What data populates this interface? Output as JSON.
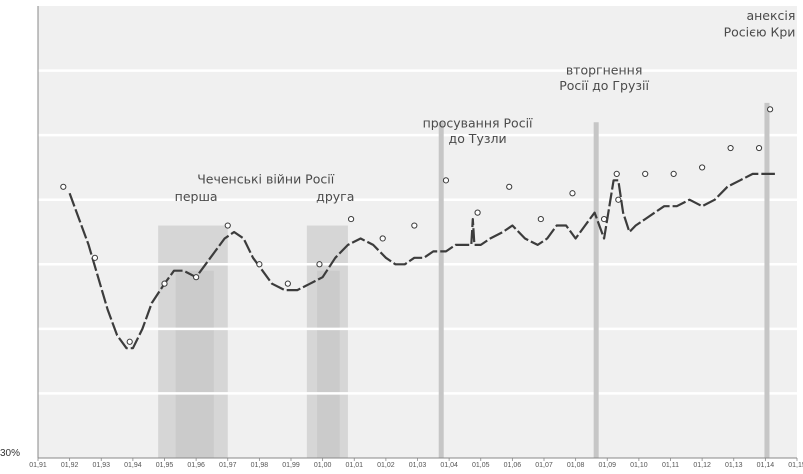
{
  "chart_data": {
    "type": "line",
    "title": "",
    "xlabel": "",
    "ylabel": "",
    "x_ticks": [
      "01,91",
      "01,92",
      "01,93",
      "01,94",
      "01,95",
      "01,96",
      "01,97",
      "01,98",
      "01,99",
      "01,00",
      "01,01",
      "01,02",
      "01,03",
      "01,04",
      "01,05",
      "01,06",
      "01,07",
      "01,08",
      "01,09",
      "01,10",
      "01,11",
      "01,12",
      "01,13",
      "01,14",
      "01,15"
    ],
    "y_ticks_visible": [
      "30%"
    ],
    "xlim": [
      1991.0,
      2015.0
    ],
    "ylim": [
      30,
      100
    ],
    "grid": true,
    "shaded_periods": [
      {
        "start": 1994.8,
        "end": 1997.0,
        "label": "перша"
      },
      {
        "start": 1999.5,
        "end": 2000.8,
        "label": "друга"
      }
    ],
    "period_group_label": "Чеченські війни Росії",
    "event_markers": [
      {
        "x": 2003.75,
        "label_lines": [
          "просування Росії",
          "до Тузли"
        ]
      },
      {
        "x": 2008.65,
        "label_lines": [
          "вторгнення",
          "Росії до Грузії"
        ]
      },
      {
        "x": 2014.05,
        "label_lines": [
          "анексія",
          "Росією Кри"
        ]
      }
    ],
    "series": [
      {
        "kind": "line",
        "x": [
          1992.0,
          1992.3,
          1992.6,
          1992.9,
          1993.2,
          1993.5,
          1993.8,
          1994.0,
          1994.3,
          1994.6,
          1995.0,
          1995.3,
          1995.6,
          1996.0,
          1996.3,
          1996.6,
          1996.9,
          1997.2,
          1997.5,
          1997.8,
          1998.1,
          1998.4,
          1998.8,
          1999.2,
          1999.6,
          2000.0,
          2000.4,
          2000.8,
          2001.2,
          2001.6,
          2002.0,
          2002.3,
          2002.6,
          2002.9,
          2003.2,
          2003.5,
          2003.9,
          2004.2,
          2004.5,
          2004.7,
          2004.75,
          2004.8,
          2005.0,
          2005.3,
          2005.7,
          2006.0,
          2006.4,
          2006.8,
          2007.1,
          2007.4,
          2007.7,
          2008.0,
          2008.3,
          2008.6,
          2008.9,
          2009.2,
          2009.35,
          2009.5,
          2009.7,
          2009.9,
          2010.2,
          2010.5,
          2010.8,
          2011.2,
          2011.6,
          2012.0,
          2012.4,
          2012.8,
          2013.2,
          2013.6,
          2014.0,
          2014.3
        ],
        "y": [
          71,
          67,
          63,
          58,
          53,
          49,
          47,
          47,
          50,
          54,
          57,
          59,
          59,
          58,
          60,
          62,
          64,
          65,
          64,
          61,
          59,
          57,
          56,
          56,
          57,
          58,
          61,
          63,
          64,
          63,
          61,
          60,
          60,
          61,
          61,
          62,
          62,
          63,
          63,
          63,
          67,
          63,
          63,
          64,
          65,
          66,
          64,
          63,
          64,
          66,
          66,
          64,
          66,
          68,
          64,
          73,
          73,
          68,
          65,
          66,
          67,
          68,
          69,
          69,
          70,
          69,
          70,
          72,
          73,
          74,
          74,
          74
        ]
      },
      {
        "kind": "points",
        "x": [
          1991.8,
          1992.8,
          1993.9,
          1995.0,
          1996.0,
          1997.0,
          1998.0,
          1998.9,
          1999.9,
          2000.9,
          2001.9,
          2002.9,
          2003.9,
          2004.9,
          2005.9,
          2006.9,
          2007.9,
          2008.9,
          2009.3,
          2009.35,
          2010.2,
          2011.1,
          2012.0,
          2012.9,
          2013.8,
          2014.15
        ],
        "y": [
          72,
          61,
          48,
          57,
          58,
          66,
          60,
          57,
          60,
          67,
          64,
          66,
          73,
          68,
          72,
          67,
          71,
          67,
          74,
          70,
          74,
          74,
          75,
          78,
          78,
          84
        ]
      }
    ]
  }
}
